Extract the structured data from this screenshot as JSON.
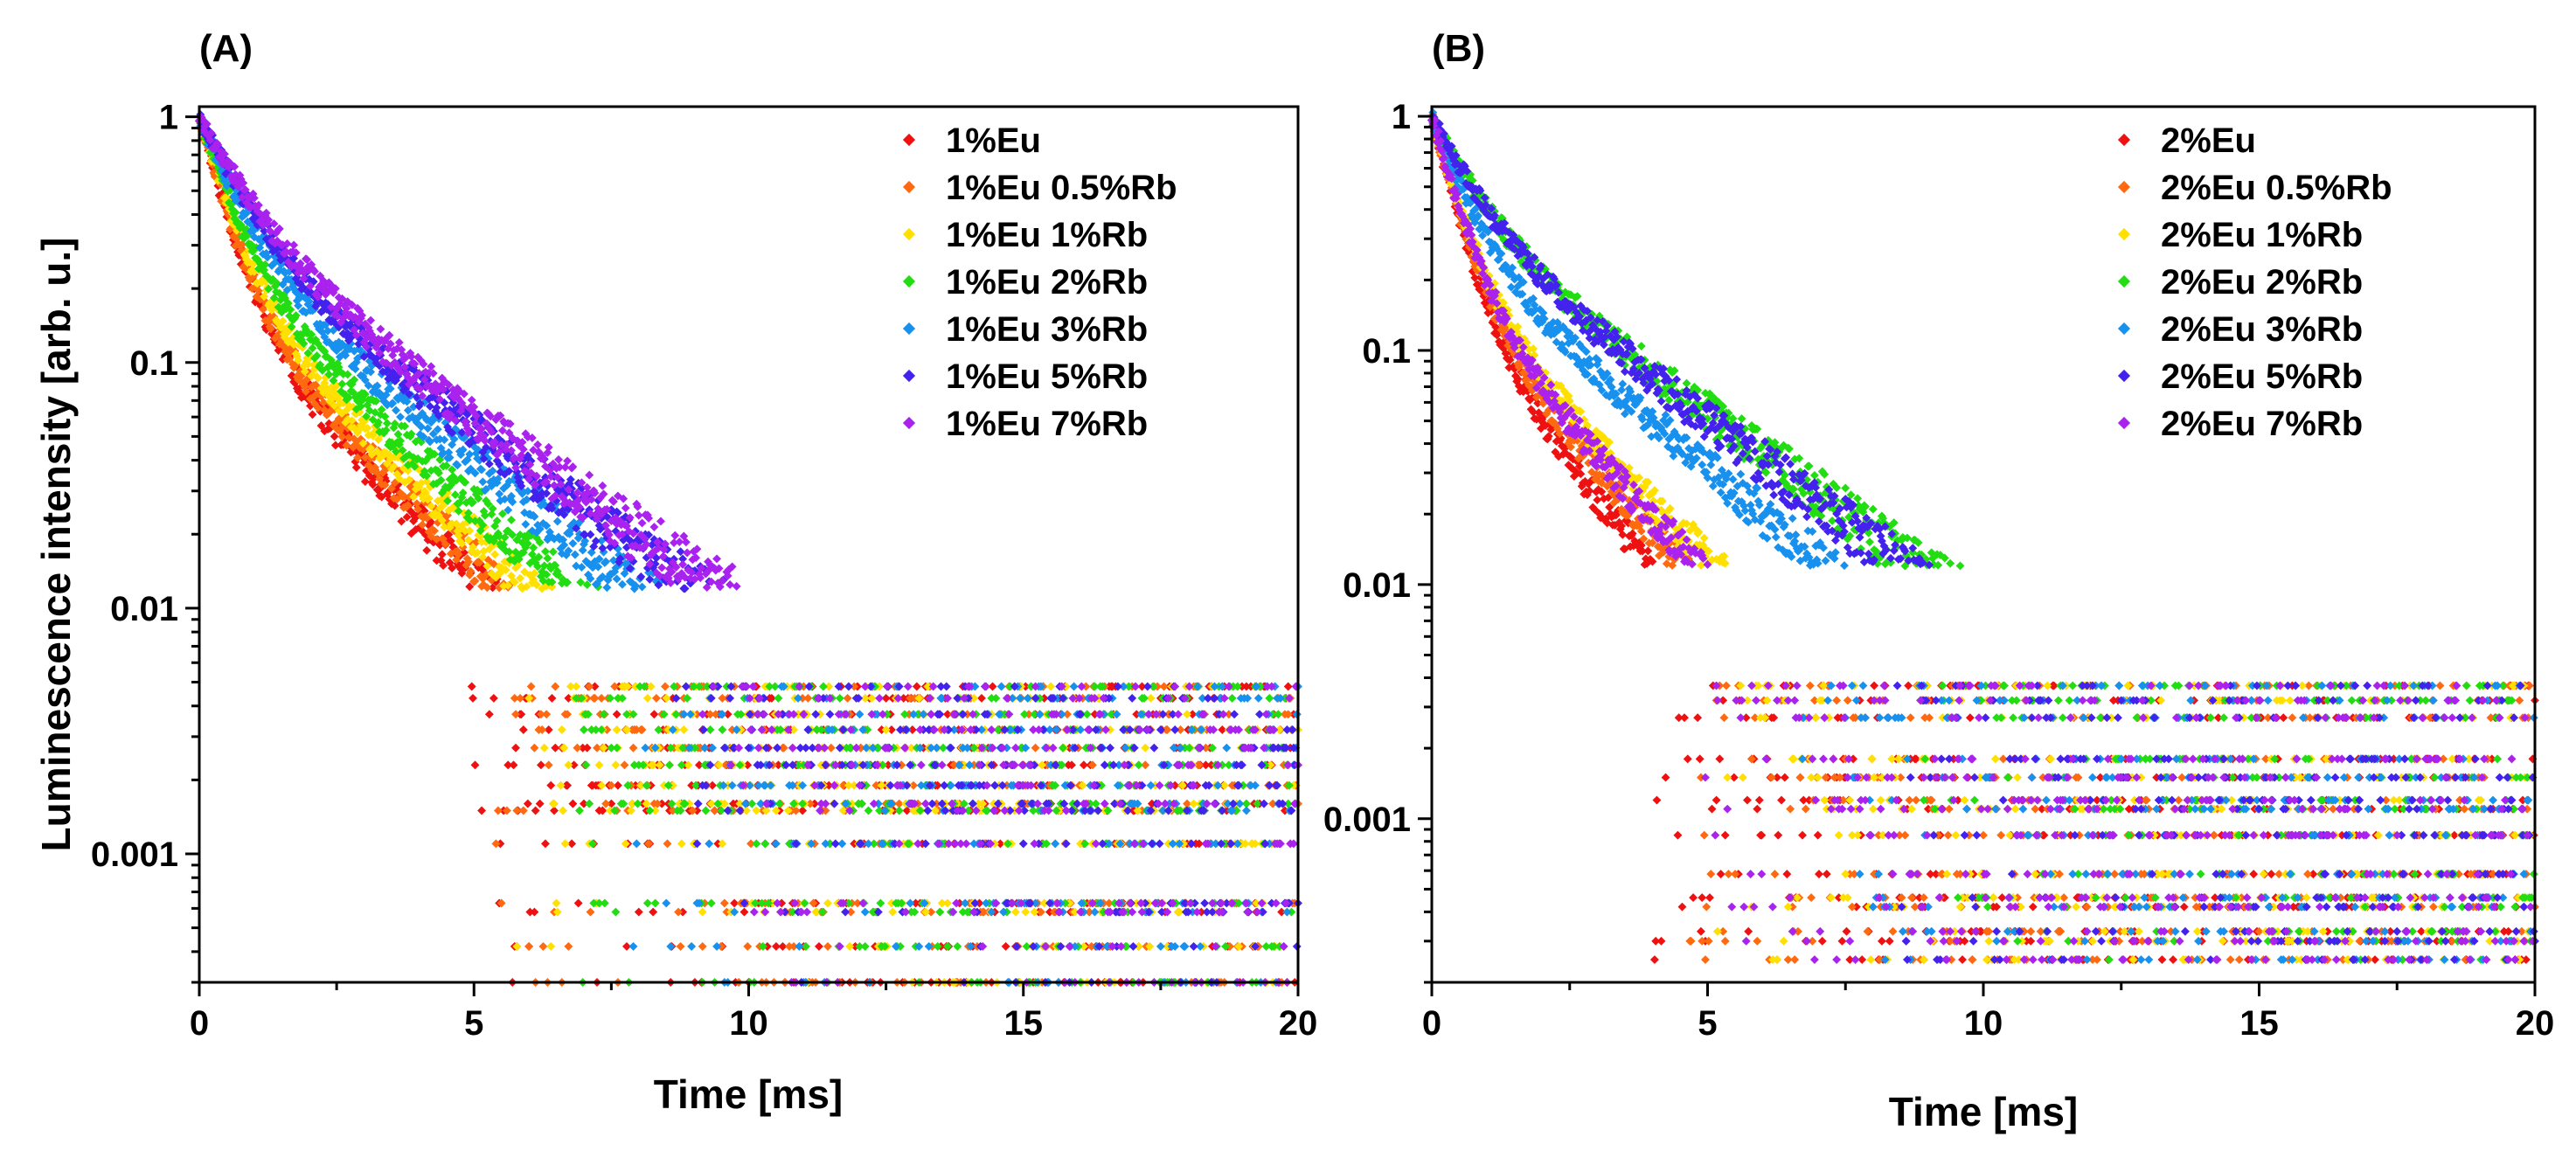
{
  "figure": {
    "ylabel": "Luminescence intensity [arb. u.]"
  },
  "chart_data": [
    {
      "type": "scatter",
      "panel_label": "(A)",
      "xlabel": "Time [ms]",
      "ylabel": "Luminescence intensity [arb. u.]",
      "xlim": [
        0,
        20
      ],
      "ylim": [
        0.0003,
        1.1
      ],
      "yscale": "log",
      "x_ticks": [
        0,
        5,
        10,
        15,
        20
      ],
      "x_tick_labels": [
        "0",
        "5",
        "10",
        "15",
        "20"
      ],
      "y_ticks": [
        1,
        0.1,
        0.01,
        0.001
      ],
      "y_tick_labels": [
        "1",
        "0.1",
        "0.01",
        "0.001"
      ],
      "legend_position": "top-right",
      "floor_levels": [
        0.0003,
        0.00042,
        0.00058,
        0.00063,
        0.0011,
        0.0015,
        0.0016,
        0.0019,
        0.0023,
        0.0027,
        0.0032,
        0.0037,
        0.0043,
        0.0048
      ],
      "series": [
        {
          "name": "1%Eu",
          "color": "#ee1111",
          "tau": [
            0.45,
            1.9
          ],
          "weight": 0.82,
          "noise": 0.0004,
          "seed": 11
        },
        {
          "name": "1%Eu 0.5%Rb",
          "color": "#ff6a10",
          "tau": [
            0.45,
            1.95
          ],
          "weight": 0.8,
          "noise": 0.0004,
          "seed": 12
        },
        {
          "name": "1%Eu 1%Rb",
          "color": "#ffe000",
          "tau": [
            0.5,
            2.05
          ],
          "weight": 0.78,
          "noise": 0.0004,
          "seed": 13
        },
        {
          "name": "1%Eu 2%Rb",
          "color": "#22dd11",
          "tau": [
            0.55,
            2.2
          ],
          "weight": 0.75,
          "noise": 0.0004,
          "seed": 14
        },
        {
          "name": "1%Eu 3%Rb",
          "color": "#1890ee",
          "tau": [
            0.65,
            2.45
          ],
          "weight": 0.7,
          "noise": 0.0004,
          "seed": 15
        },
        {
          "name": "1%Eu 5%Rb",
          "color": "#4422ee",
          "tau": [
            0.75,
            2.65
          ],
          "weight": 0.66,
          "noise": 0.0005,
          "seed": 16
        },
        {
          "name": "1%Eu 7%Rb",
          "color": "#aa22ee",
          "tau": [
            0.8,
            2.75
          ],
          "weight": 0.64,
          "noise": 0.0005,
          "seed": 17
        }
      ]
    },
    {
      "type": "scatter",
      "panel_label": "(B)",
      "xlabel": "Time [ms]",
      "ylabel": "",
      "xlim": [
        0,
        20
      ],
      "ylim": [
        0.0002,
        1.1
      ],
      "yscale": "log",
      "x_ticks": [
        0,
        5,
        10,
        15,
        20
      ],
      "x_tick_labels": [
        "0",
        "5",
        "10",
        "15",
        "20"
      ],
      "y_ticks": [
        1,
        0.1,
        0.01,
        0.001
      ],
      "y_tick_labels": [
        "1",
        "0.1",
        "0.01",
        "0.001"
      ],
      "legend_position": "top-right",
      "floor_levels": [
        0.00025,
        0.0003,
        0.00033,
        0.00042,
        0.00046,
        0.00058,
        0.00085,
        0.0011,
        0.0012,
        0.0015,
        0.0018,
        0.0027,
        0.0032,
        0.0037
      ],
      "series": [
        {
          "name": "2%Eu",
          "color": "#ee1111",
          "tau": [
            0.4,
            1.45
          ],
          "weight": 0.82,
          "noise": 0.0004,
          "seed": 21
        },
        {
          "name": "2%Eu 0.5%Rb",
          "color": "#ff6a10",
          "tau": [
            0.42,
            1.6
          ],
          "weight": 0.8,
          "noise": 0.0004,
          "seed": 22
        },
        {
          "name": "2%Eu 1%Rb",
          "color": "#ffe000",
          "tau": [
            0.45,
            1.75
          ],
          "weight": 0.78,
          "noise": 0.0004,
          "seed": 23
        },
        {
          "name": "2%Eu 2%Rb",
          "color": "#22dd11",
          "tau": [
            0.7,
            2.55
          ],
          "weight": 0.62,
          "noise": 0.0005,
          "seed": 24
        },
        {
          "name": "2%Eu 3%Rb",
          "color": "#1890ee",
          "tau": [
            0.55,
            2.2
          ],
          "weight": 0.7,
          "noise": 0.0005,
          "seed": 25
        },
        {
          "name": "2%Eu 5%Rb",
          "color": "#4422ee",
          "tau": [
            0.7,
            2.45
          ],
          "weight": 0.62,
          "noise": 0.0005,
          "seed": 26
        },
        {
          "name": "2%Eu 7%Rb",
          "color": "#aa22ee",
          "tau": [
            0.45,
            1.7
          ],
          "weight": 0.8,
          "noise": 0.0004,
          "seed": 27
        }
      ]
    }
  ]
}
